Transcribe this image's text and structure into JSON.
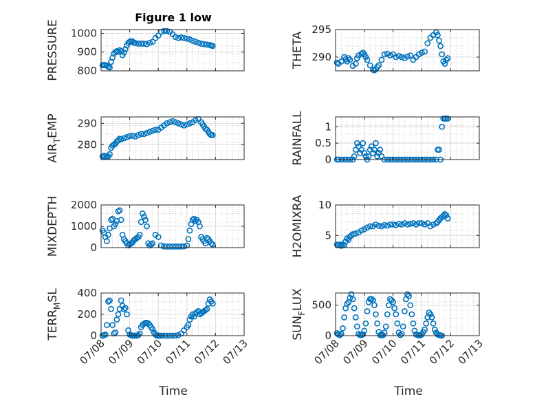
{
  "figure": {
    "title": "Figure 1 low",
    "xlabel": "Time",
    "marker_color": "#0072BD"
  },
  "chart_data": [
    {
      "type": "scatter",
      "ylabel": "PRESSURE",
      "ylim": [
        800,
        1020
      ],
      "yticks": [
        800,
        900,
        1000
      ],
      "xlim": [
        0,
        5
      ],
      "grid": true,
      "xtick_labels": [
        "07/08",
        "07/09",
        "07/10",
        "07/11",
        "07/12",
        "07/13"
      ],
      "show_xticks": false,
      "x": [
        0.05,
        0.1,
        0.15,
        0.2,
        0.25,
        0.3,
        0.35,
        0.4,
        0.45,
        0.5,
        0.55,
        0.6,
        0.65,
        0.7,
        0.75,
        0.8,
        0.85,
        0.9,
        0.95,
        1.0,
        1.05,
        1.1,
        1.15,
        1.2,
        1.3,
        1.4,
        1.5,
        1.6,
        1.7,
        1.8,
        1.9,
        2.0,
        2.1,
        2.2,
        2.3,
        2.4,
        2.5,
        2.6,
        2.7,
        2.8,
        2.9,
        3.0,
        3.1,
        3.2,
        3.3,
        3.4,
        3.5,
        3.6,
        3.7,
        3.8,
        3.85,
        3.9
      ],
      "y": [
        830,
        832,
        830,
        828,
        822,
        818,
        848,
        870,
        892,
        900,
        905,
        902,
        910,
        905,
        884,
        898,
        915,
        935,
        948,
        955,
        958,
        956,
        950,
        948,
        945,
        945,
        945,
        942,
        950,
        955,
        975,
        988,
        1008,
        1012,
        1012,
        1008,
        995,
        980,
        975,
        978,
        975,
        972,
        968,
        960,
        955,
        950,
        945,
        942,
        940,
        938,
        935,
        933
      ]
    },
    {
      "type": "scatter",
      "ylabel": "THETA",
      "ylim": [
        287.5,
        295
      ],
      "yticks": [
        290,
        295
      ],
      "xlim": [
        0,
        5
      ],
      "grid": true,
      "xtick_labels": [
        "07/08",
        "07/09",
        "07/10",
        "07/11",
        "07/12",
        "07/13"
      ],
      "show_xticks": false,
      "x": [
        0.05,
        0.1,
        0.2,
        0.3,
        0.35,
        0.4,
        0.45,
        0.5,
        0.6,
        0.7,
        0.75,
        0.8,
        0.9,
        0.95,
        1.0,
        1.05,
        1.1,
        1.2,
        1.3,
        1.35,
        1.4,
        1.45,
        1.5,
        1.6,
        1.7,
        1.8,
        1.9,
        2.0,
        2.1,
        2.2,
        2.3,
        2.4,
        2.5,
        2.6,
        2.7,
        2.8,
        2.9,
        3.0,
        3.1,
        3.2,
        3.3,
        3.4,
        3.5,
        3.55,
        3.6,
        3.65,
        3.7,
        3.75,
        3.8,
        3.85,
        3.9
      ],
      "y": [
        289.0,
        288.8,
        289.2,
        290.0,
        289.6,
        289.2,
        289.8,
        289.5,
        288.4,
        288.8,
        289.8,
        290.3,
        290.6,
        290.8,
        290.5,
        290.0,
        289.5,
        288.5,
        287.7,
        287.6,
        287.8,
        288.2,
        288.5,
        289.5,
        290.5,
        290.6,
        290.3,
        290.5,
        290.0,
        290.2,
        290.0,
        289.8,
        290.1,
        290.3,
        289.5,
        290.0,
        290.5,
        290.8,
        291.0,
        292.5,
        293.5,
        294.0,
        294.5,
        294.0,
        293.0,
        292.0,
        290.5,
        289.2,
        288.8,
        289.5,
        289.8
      ]
    },
    {
      "type": "scatter",
      "ylabel": "AIR_TEMP",
      "ylim": [
        273,
        293
      ],
      "yticks": [
        280,
        290
      ],
      "xlim": [
        0,
        5
      ],
      "grid": true,
      "xtick_labels": [
        "07/08",
        "07/09",
        "07/10",
        "07/11",
        "07/12",
        "07/13"
      ],
      "show_xticks": false,
      "x": [
        0.05,
        0.1,
        0.15,
        0.2,
        0.25,
        0.3,
        0.35,
        0.4,
        0.45,
        0.5,
        0.55,
        0.6,
        0.65,
        0.7,
        0.8,
        0.9,
        1.0,
        1.1,
        1.2,
        1.3,
        1.4,
        1.5,
        1.6,
        1.7,
        1.8,
        1.9,
        2.0,
        2.1,
        2.2,
        2.3,
        2.4,
        2.5,
        2.6,
        2.7,
        2.8,
        2.9,
        3.0,
        3.1,
        3.2,
        3.3,
        3.4,
        3.5,
        3.55,
        3.6,
        3.65,
        3.7,
        3.75,
        3.8,
        3.85,
        3.9
      ],
      "y": [
        274.5,
        274.8,
        274.5,
        274.2,
        274.5,
        275.5,
        278.5,
        279.5,
        280.0,
        280.5,
        281.5,
        282.0,
        282.8,
        282.5,
        283.0,
        283.5,
        284.0,
        284.2,
        283.8,
        284.5,
        285.0,
        285.0,
        285.5,
        286.0,
        286.5,
        287.0,
        287.0,
        288.0,
        289.0,
        290.0,
        290.5,
        291.0,
        290.5,
        290.0,
        289.5,
        289.0,
        289.5,
        290.0,
        290.5,
        291.5,
        292.0,
        290.5,
        289.5,
        288.5,
        287.5,
        287.0,
        286.0,
        285.0,
        284.5,
        284.5
      ]
    },
    {
      "type": "scatter",
      "ylabel": "RAINFALL",
      "ylim": [
        0,
        1.3
      ],
      "yticks": [
        0,
        0.5,
        1
      ],
      "ytick_labels": [
        "0",
        "0.5",
        "1"
      ],
      "xlim": [
        0,
        5
      ],
      "grid": true,
      "xtick_labels": [
        "07/08",
        "07/09",
        "07/10",
        "07/11",
        "07/12",
        "07/13"
      ],
      "show_xticks": false,
      "x": [
        0.05,
        0.1,
        0.2,
        0.3,
        0.4,
        0.5,
        0.6,
        0.65,
        0.7,
        0.75,
        0.8,
        0.85,
        0.9,
        0.95,
        1.0,
        1.05,
        1.1,
        1.15,
        1.2,
        1.25,
        1.3,
        1.35,
        1.4,
        1.45,
        1.5,
        1.55,
        1.6,
        1.7,
        1.8,
        1.9,
        2.0,
        2.1,
        2.2,
        2.3,
        2.4,
        2.5,
        2.6,
        2.7,
        2.8,
        2.9,
        3.0,
        3.1,
        3.2,
        3.3,
        3.4,
        3.5,
        3.55,
        3.6,
        3.65,
        3.7,
        3.75,
        3.8,
        3.85,
        3.9
      ],
      "y": [
        0,
        0,
        0,
        0,
        0,
        0,
        0,
        0.1,
        0.3,
        0.5,
        0.4,
        0.2,
        0.3,
        0.5,
        0.2,
        0.1,
        0,
        0.1,
        0.3,
        0.4,
        0.2,
        0.3,
        0.5,
        0.1,
        0.2,
        0.3,
        0.1,
        0,
        0,
        0,
        0,
        0,
        0,
        0,
        0,
        0,
        0,
        0,
        0,
        0,
        0,
        0,
        0,
        0,
        0,
        0,
        0.3,
        0.3,
        0,
        1.0,
        1.25,
        1.25,
        1.25,
        1.25
      ]
    },
    {
      "type": "scatter",
      "ylabel": "MIXDEPTH",
      "ylim": [
        0,
        2000
      ],
      "yticks": [
        0,
        1000,
        2000
      ],
      "xlim": [
        0,
        5
      ],
      "grid": true,
      "xtick_labels": [
        "07/08",
        "07/09",
        "07/10",
        "07/11",
        "07/12",
        "07/13"
      ],
      "show_xticks": false,
      "x": [
        0.05,
        0.1,
        0.15,
        0.2,
        0.25,
        0.3,
        0.35,
        0.4,
        0.45,
        0.5,
        0.55,
        0.6,
        0.65,
        0.7,
        0.75,
        0.8,
        0.85,
        0.9,
        0.95,
        1.0,
        1.05,
        1.1,
        1.15,
        1.2,
        1.25,
        1.3,
        1.35,
        1.4,
        1.45,
        1.5,
        1.55,
        1.6,
        1.65,
        1.7,
        1.75,
        1.8,
        1.9,
        2.0,
        2.1,
        2.2,
        2.3,
        2.4,
        2.5,
        2.6,
        2.7,
        2.8,
        2.9,
        3.0,
        3.05,
        3.1,
        3.15,
        3.2,
        3.25,
        3.3,
        3.35,
        3.4,
        3.45,
        3.5,
        3.55,
        3.6,
        3.65,
        3.7,
        3.75,
        3.8,
        3.85,
        3.9
      ],
      "y": [
        800,
        700,
        500,
        300,
        600,
        900,
        1300,
        1350,
        1000,
        1100,
        1250,
        1700,
        1750,
        1300,
        600,
        400,
        300,
        200,
        100,
        150,
        200,
        250,
        350,
        400,
        450,
        500,
        600,
        1200,
        1600,
        1450,
        1300,
        1000,
        200,
        100,
        150,
        200,
        600,
        500,
        100,
        50,
        50,
        50,
        50,
        50,
        50,
        50,
        60,
        100,
        400,
        800,
        1100,
        1300,
        1350,
        1250,
        1300,
        1200,
        1000,
        500,
        400,
        300,
        200,
        450,
        400,
        300,
        200,
        150
      ]
    },
    {
      "type": "scatter",
      "ylabel": "H2OMIXRA",
      "ylim": [
        3,
        10
      ],
      "yticks": [
        5,
        10
      ],
      "xlim": [
        0,
        5
      ],
      "grid": true,
      "xtick_labels": [
        "07/08",
        "07/09",
        "07/10",
        "07/11",
        "07/12",
        "07/13"
      ],
      "show_xticks": false,
      "x": [
        0.05,
        0.1,
        0.15,
        0.2,
        0.25,
        0.3,
        0.35,
        0.4,
        0.45,
        0.5,
        0.55,
        0.6,
        0.7,
        0.8,
        0.9,
        1.0,
        1.1,
        1.2,
        1.3,
        1.4,
        1.5,
        1.6,
        1.7,
        1.8,
        1.9,
        2.0,
        2.1,
        2.2,
        2.3,
        2.4,
        2.5,
        2.6,
        2.7,
        2.8,
        2.9,
        3.0,
        3.1,
        3.2,
        3.3,
        3.4,
        3.5,
        3.55,
        3.6,
        3.65,
        3.7,
        3.75,
        3.8,
        3.85,
        3.9
      ],
      "y": [
        3.5,
        3.4,
        3.5,
        3.3,
        3.5,
        3.4,
        4.0,
        4.5,
        4.3,
        4.8,
        5.0,
        5.2,
        5.3,
        5.5,
        5.8,
        6.0,
        6.3,
        6.5,
        6.5,
        6.8,
        6.6,
        6.5,
        6.7,
        6.6,
        6.8,
        6.8,
        6.7,
        6.9,
        6.8,
        7.0,
        6.8,
        6.9,
        7.0,
        6.8,
        7.0,
        7.0,
        6.8,
        7.0,
        6.5,
        6.8,
        7.0,
        7.2,
        7.5,
        7.8,
        8.0,
        8.2,
        8.5,
        8.3,
        7.8
      ]
    },
    {
      "type": "scatter",
      "ylabel": "TERR_MSL",
      "ylim": [
        0,
        400
      ],
      "yticks": [
        0,
        200,
        400
      ],
      "xlim": [
        0,
        5
      ],
      "grid": true,
      "xtick_labels": [
        "07/08",
        "07/09",
        "07/10",
        "07/11",
        "07/12",
        "07/13"
      ],
      "show_xticks": true,
      "x": [
        0.05,
        0.1,
        0.15,
        0.2,
        0.25,
        0.3,
        0.35,
        0.4,
        0.45,
        0.5,
        0.55,
        0.6,
        0.65,
        0.7,
        0.75,
        0.8,
        0.85,
        0.9,
        0.95,
        1.0,
        1.05,
        1.1,
        1.15,
        1.2,
        1.25,
        1.3,
        1.35,
        1.4,
        1.45,
        1.5,
        1.55,
        1.6,
        1.65,
        1.7,
        1.75,
        1.8,
        1.85,
        1.9,
        1.95,
        2.0,
        2.05,
        2.1,
        2.2,
        2.3,
        2.4,
        2.5,
        2.6,
        2.7,
        2.8,
        2.9,
        3.0,
        3.05,
        3.1,
        3.15,
        3.2,
        3.25,
        3.3,
        3.35,
        3.4,
        3.45,
        3.5,
        3.55,
        3.6,
        3.65,
        3.7,
        3.75,
        3.8,
        3.85,
        3.9
      ],
      "y": [
        0,
        5,
        10,
        100,
        320,
        330,
        250,
        100,
        20,
        30,
        150,
        200,
        250,
        330,
        280,
        250,
        260,
        200,
        50,
        10,
        5,
        0,
        0,
        0,
        0,
        5,
        20,
        80,
        100,
        110,
        120,
        120,
        115,
        100,
        80,
        60,
        30,
        10,
        0,
        0,
        0,
        0,
        0,
        0,
        0,
        0,
        0,
        5,
        20,
        50,
        80,
        100,
        150,
        180,
        200,
        180,
        210,
        220,
        230,
        200,
        210,
        220,
        230,
        240,
        250,
        300,
        340,
        320,
        300
      ]
    },
    {
      "type": "scatter",
      "ylabel": "SUN_FLUX",
      "ylim": [
        0,
        700
      ],
      "yticks": [
        0,
        500
      ],
      "xlim": [
        0,
        5
      ],
      "grid": true,
      "xtick_labels": [
        "07/08",
        "07/09",
        "07/10",
        "07/11",
        "07/12",
        "07/13"
      ],
      "show_xticks": true,
      "x": [
        0.05,
        0.1,
        0.15,
        0.2,
        0.25,
        0.3,
        0.35,
        0.4,
        0.45,
        0.5,
        0.55,
        0.6,
        0.65,
        0.7,
        0.75,
        0.8,
        0.85,
        0.9,
        0.95,
        1.0,
        1.05,
        1.1,
        1.15,
        1.2,
        1.25,
        1.3,
        1.35,
        1.4,
        1.45,
        1.5,
        1.55,
        1.6,
        1.65,
        1.7,
        1.75,
        1.8,
        1.85,
        1.9,
        1.95,
        2.0,
        2.05,
        2.1,
        2.15,
        2.2,
        2.25,
        2.3,
        2.35,
        2.4,
        2.45,
        2.5,
        2.55,
        2.6,
        2.65,
        2.7,
        2.75,
        2.8,
        2.85,
        2.9,
        2.95,
        3.0,
        3.05,
        3.1,
        3.15,
        3.2,
        3.25,
        3.3,
        3.35,
        3.4,
        3.45,
        3.5,
        3.55,
        3.6,
        3.65,
        3.7
      ],
      "y": [
        40,
        20,
        10,
        30,
        120,
        300,
        450,
        520,
        550,
        620,
        680,
        600,
        450,
        300,
        150,
        30,
        10,
        10,
        20,
        80,
        200,
        400,
        550,
        600,
        600,
        580,
        500,
        350,
        200,
        60,
        10,
        5,
        10,
        50,
        150,
        350,
        500,
        600,
        580,
        550,
        450,
        350,
        200,
        50,
        10,
        30,
        150,
        400,
        600,
        680,
        650,
        500,
        350,
        200,
        80,
        20,
        10,
        5,
        5,
        20,
        60,
        100,
        200,
        300,
        380,
        350,
        300,
        200,
        100,
        50,
        20,
        10,
        5,
        0
      ]
    }
  ]
}
